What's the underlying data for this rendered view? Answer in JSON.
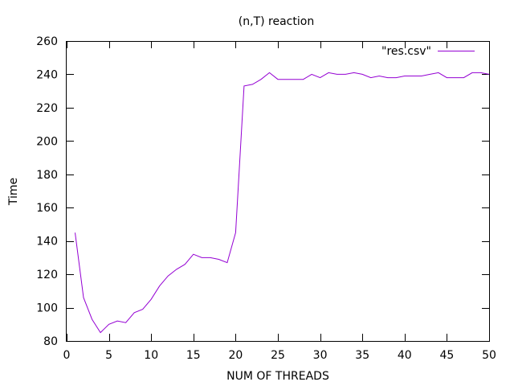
{
  "chart_data": {
    "type": "line",
    "title": "(n,T) reaction",
    "xlabel": "NUM OF THREADS",
    "ylabel": "Time",
    "xlim": [
      0,
      50
    ],
    "ylim": [
      80,
      260
    ],
    "xticks": [
      0,
      5,
      10,
      15,
      20,
      25,
      30,
      35,
      40,
      45,
      50
    ],
    "yticks": [
      80,
      100,
      120,
      140,
      160,
      180,
      200,
      220,
      240,
      260
    ],
    "grid": false,
    "legend_position": "top-right",
    "series": [
      {
        "name": "\"res.csv\"",
        "color": "#9400d3",
        "x": [
          1,
          2,
          3,
          4,
          5,
          6,
          7,
          8,
          9,
          10,
          11,
          12,
          13,
          14,
          15,
          16,
          17,
          18,
          19,
          20,
          21,
          22,
          23,
          24,
          25,
          26,
          27,
          28,
          29,
          30,
          31,
          32,
          33,
          34,
          35,
          36,
          37,
          38,
          39,
          40,
          41,
          42,
          43,
          44,
          45,
          46,
          47,
          48,
          49,
          50
        ],
        "values": [
          145,
          106,
          93,
          85,
          90,
          92,
          91,
          97,
          99,
          105,
          113,
          119,
          123,
          126,
          132,
          130,
          130,
          129,
          127,
          145,
          233,
          234,
          237,
          241,
          237,
          237,
          237,
          237,
          240,
          238,
          241,
          240,
          240,
          241,
          240,
          238,
          239,
          238,
          238,
          239,
          239,
          239,
          240,
          241,
          238,
          238,
          238,
          241,
          241,
          240
        ]
      }
    ]
  }
}
